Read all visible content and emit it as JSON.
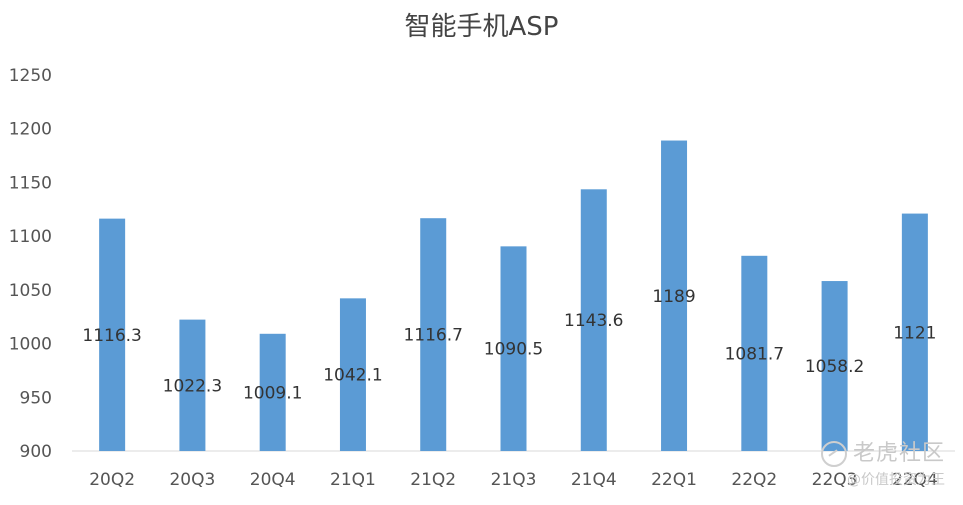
{
  "chart_data": {
    "type": "bar",
    "title": "智能手机ASP",
    "xlabel": "",
    "ylabel": "",
    "categories": [
      "20Q2",
      "20Q3",
      "20Q4",
      "21Q1",
      "21Q2",
      "21Q3",
      "21Q4",
      "22Q1",
      "22Q2",
      "22Q3",
      "22Q4"
    ],
    "series": [
      {
        "values": [
          1116.3,
          1022.3,
          1009.1,
          1042.1,
          1116.7,
          1090.5,
          1143.6,
          1189,
          1081.7,
          1058.2,
          1121
        ]
      }
    ],
    "data_labels": [
      "1116.3",
      "1022.3",
      "1009.1",
      "1042.1",
      "1116.7",
      "1090.5",
      "1143.6",
      "1189",
      "1081.7",
      "1058.2",
      "1121"
    ],
    "ylim": [
      900,
      1250
    ],
    "yticks": [
      900,
      950,
      1000,
      1050,
      1100,
      1150,
      1200,
      1250
    ],
    "grid": false,
    "legend": "none",
    "bar_color": "#5b9bd5"
  },
  "watermark": {
    "line1": "老虎社区",
    "line2": "@价值投资为王"
  }
}
